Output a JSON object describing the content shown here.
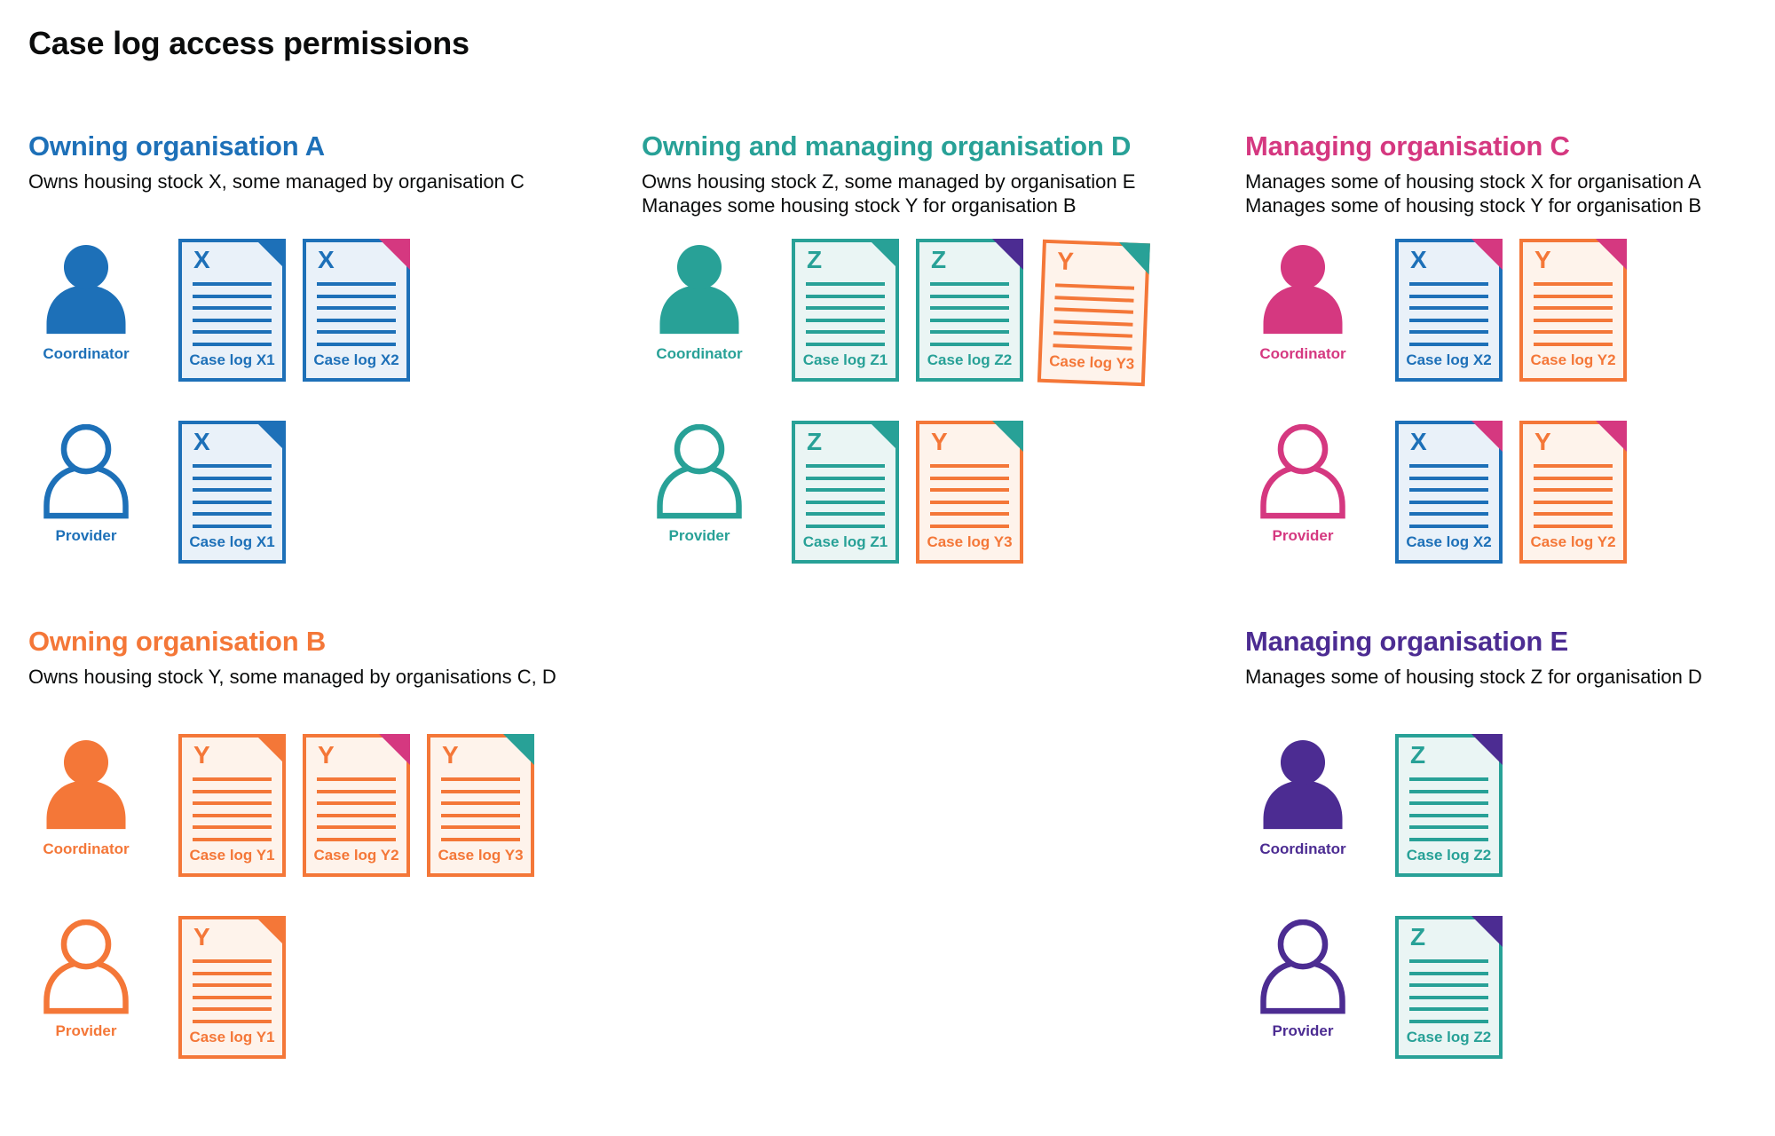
{
  "page": {
    "title": "Case log access permissions"
  },
  "colors": {
    "blue": "#1d70b8",
    "teal": "#28a197",
    "pink": "#d53880",
    "orange": "#f47738",
    "purple": "#4c2c92",
    "text": "#0b0c0c"
  },
  "doc_tints": {
    "blue": "#e9f1f9",
    "teal": "#eaf5f4",
    "orange": "#fef3eb"
  },
  "sections": [
    {
      "id": "owning-organisation-a",
      "heading": "Owning organisation A",
      "color": "blue",
      "description_lines": [
        "Owns housing stock X, some managed by organisation C"
      ],
      "rows": [
        {
          "role": "Coordinator",
          "person_style": "filled",
          "documents": [
            {
              "letter": "X",
              "label": "Case log X1",
              "doc_color": "blue",
              "fold_color": "blue"
            },
            {
              "letter": "X",
              "label": "Case log X2",
              "doc_color": "blue",
              "fold_color": "pink"
            }
          ]
        },
        {
          "role": "Provider",
          "person_style": "outline",
          "documents": [
            {
              "letter": "X",
              "label": "Case log X1",
              "doc_color": "blue",
              "fold_color": "blue"
            }
          ]
        }
      ]
    },
    {
      "id": "owning-and-managing-organisation-d",
      "heading": "Owning and managing organisation D",
      "color": "teal",
      "description_lines": [
        "Owns housing stock Z, some managed by organisation E",
        "Manages some housing stock Y for organisation B"
      ],
      "rows": [
        {
          "role": "Coordinator",
          "person_style": "filled",
          "documents": [
            {
              "letter": "Z",
              "label": "Case log Z1",
              "doc_color": "teal",
              "fold_color": "teal"
            },
            {
              "letter": "Z",
              "label": "Case log Z2",
              "doc_color": "teal",
              "fold_color": "purple"
            },
            {
              "letter": "Y",
              "label": "Case log Y3",
              "doc_color": "orange",
              "fold_color": "teal",
              "tilt": true
            }
          ]
        },
        {
          "role": "Provider",
          "person_style": "outline",
          "documents": [
            {
              "letter": "Z",
              "label": "Case log Z1",
              "doc_color": "teal",
              "fold_color": "teal"
            },
            {
              "letter": "Y",
              "label": "Case log Y3",
              "doc_color": "orange",
              "fold_color": "teal"
            }
          ]
        }
      ]
    },
    {
      "id": "managing-organisation-c",
      "heading": "Managing organisation C",
      "color": "pink",
      "description_lines": [
        "Manages some of housing stock X for organisation A",
        "Manages some of housing stock Y for organisation B"
      ],
      "rows": [
        {
          "role": "Coordinator",
          "person_style": "filled",
          "documents": [
            {
              "letter": "X",
              "label": "Case log X2",
              "doc_color": "blue",
              "fold_color": "pink"
            },
            {
              "letter": "Y",
              "label": "Case log Y2",
              "doc_color": "orange",
              "fold_color": "pink"
            }
          ]
        },
        {
          "role": "Provider",
          "person_style": "outline",
          "documents": [
            {
              "letter": "X",
              "label": "Case log X2",
              "doc_color": "blue",
              "fold_color": "pink"
            },
            {
              "letter": "Y",
              "label": "Case log Y2",
              "doc_color": "orange",
              "fold_color": "pink"
            }
          ]
        }
      ]
    },
    {
      "id": "owning-organisation-b",
      "heading": "Owning organisation B",
      "color": "orange",
      "description_lines": [
        "Owns housing stock Y, some managed by organisations C, D"
      ],
      "rows": [
        {
          "role": "Coordinator",
          "person_style": "filled",
          "documents": [
            {
              "letter": "Y",
              "label": "Case log Y1",
              "doc_color": "orange",
              "fold_color": "orange"
            },
            {
              "letter": "Y",
              "label": "Case log Y2",
              "doc_color": "orange",
              "fold_color": "pink"
            },
            {
              "letter": "Y",
              "label": "Case log Y3",
              "doc_color": "orange",
              "fold_color": "teal"
            }
          ]
        },
        {
          "role": "Provider",
          "person_style": "outline",
          "documents": [
            {
              "letter": "Y",
              "label": "Case log Y1",
              "doc_color": "orange",
              "fold_color": "orange"
            }
          ]
        }
      ]
    },
    {
      "id": "managing-organisation-e",
      "heading": "Managing organisation E",
      "color": "purple",
      "description_lines": [
        "Manages some of housing stock Z for organisation D"
      ],
      "rows": [
        {
          "role": "Coordinator",
          "person_style": "filled",
          "documents": [
            {
              "letter": "Z",
              "label": "Case log Z2",
              "doc_color": "teal",
              "fold_color": "purple"
            }
          ]
        },
        {
          "role": "Provider",
          "person_style": "outline",
          "documents": [
            {
              "letter": "Z",
              "label": "Case log Z2",
              "doc_color": "teal",
              "fold_color": "purple"
            }
          ]
        }
      ]
    }
  ]
}
